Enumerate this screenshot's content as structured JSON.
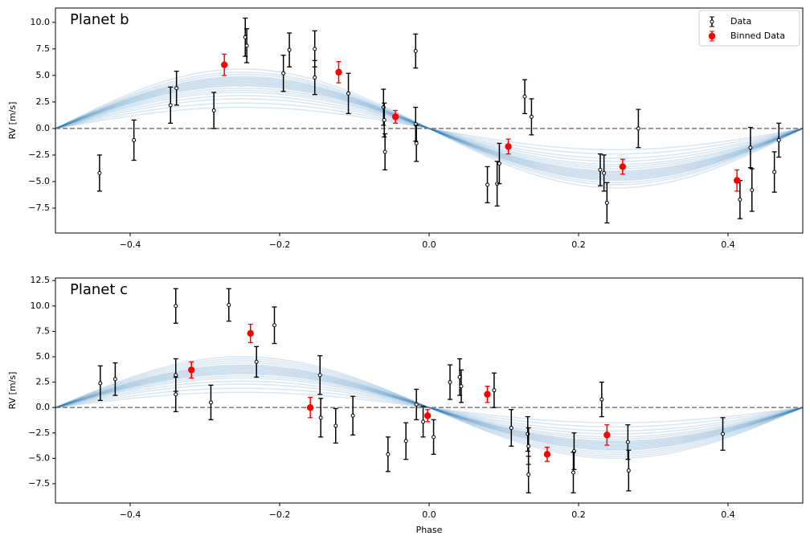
{
  "chart_data": [
    {
      "type": "scatter",
      "title": "Planet b",
      "ylabel": "RV [m/s]",
      "xlim": [
        -0.5,
        0.5
      ],
      "ylim": [
        -9.85,
        11.35
      ],
      "xticks": [
        {
          "value": -0.4,
          "label": "−0.4"
        },
        {
          "value": -0.2,
          "label": "−0.2"
        },
        {
          "value": 0,
          "label": "0.0"
        },
        {
          "value": 0.2,
          "label": "0.2"
        },
        {
          "value": 0.4,
          "label": "0.4"
        }
      ],
      "yticks": [
        {
          "value": -7.5,
          "label": "−7.5"
        },
        {
          "value": -5,
          "label": "−5.0"
        },
        {
          "value": -2.5,
          "label": "−2.5"
        },
        {
          "value": 0,
          "label": "0.0"
        },
        {
          "value": 2.5,
          "label": "2.5"
        },
        {
          "value": 5,
          "label": "5.0"
        },
        {
          "value": 7.5,
          "label": "7.5"
        },
        {
          "value": 10,
          "label": "10.0"
        }
      ],
      "grid": false,
      "legend": "upper right",
      "hline": 0,
      "models": {
        "color": "#1f77b4",
        "amplitudes": [
          2.0,
          2.4,
          2.8,
          3.1,
          3.4,
          3.6,
          3.8,
          4.0,
          4.1,
          4.2,
          4.3,
          4.4,
          4.5,
          4.6,
          4.7,
          4.8,
          4.9,
          5.1,
          5.3,
          5.6
        ]
      },
      "series": [
        {
          "name": "Data",
          "color": "#000000",
          "x": [
            -0.441,
            -0.395,
            -0.346,
            -0.338,
            -0.288,
            -0.246,
            -0.244,
            -0.195,
            -0.187,
            -0.153,
            -0.153,
            -0.108,
            -0.061,
            -0.06,
            -0.059,
            -0.018,
            -0.018,
            -0.017,
            0.078,
            0.091,
            0.094,
            0.128,
            0.137,
            0.229,
            0.234,
            0.238,
            0.28,
            0.43,
            0.432,
            0.416,
            0.462,
            0.468
          ],
          "values": [
            -4.2,
            -1.1,
            2.2,
            3.8,
            1.7,
            8.6,
            7.8,
            5.2,
            7.4,
            7.5,
            4.8,
            3.3,
            2.0,
            0.8,
            -2.2,
            7.3,
            0.4,
            -1.4,
            -5.3,
            -5.2,
            -3.3,
            3.0,
            1.1,
            -3.9,
            -4.2,
            -7.0,
            0.0,
            -1.8,
            -5.8,
            -6.7,
            -4.1,
            -1.1
          ],
          "errors": [
            1.7,
            1.9,
            1.7,
            1.6,
            1.7,
            1.8,
            1.6,
            1.7,
            1.6,
            1.7,
            1.6,
            1.9,
            1.7,
            1.6,
            1.7,
            1.6,
            1.6,
            1.7,
            1.7,
            2.1,
            1.9,
            1.6,
            1.7,
            1.5,
            1.7,
            1.9,
            1.8,
            1.9,
            2.0,
            1.8,
            1.9,
            1.6
          ]
        },
        {
          "name": "Binned Data",
          "color": "#ff0000",
          "x": [
            -0.274,
            -0.121,
            -0.045,
            0.106,
            0.259,
            0.412
          ],
          "values": [
            6.0,
            5.3,
            1.1,
            -1.7,
            -3.6,
            -4.9
          ],
          "errors": [
            1.0,
            1.0,
            0.6,
            0.7,
            0.7,
            1.0
          ]
        }
      ]
    },
    {
      "type": "scatter",
      "title": "Planet c",
      "ylabel": "RV [m/s]",
      "xlabel": "Phase",
      "xlim": [
        -0.5,
        0.5
      ],
      "ylim": [
        -9.4,
        12.75
      ],
      "xticks": [
        {
          "value": -0.4,
          "label": "−0.4"
        },
        {
          "value": -0.2,
          "label": "−0.2"
        },
        {
          "value": 0,
          "label": "0.0"
        },
        {
          "value": 0.2,
          "label": "0.2"
        },
        {
          "value": 0.4,
          "label": "0.4"
        }
      ],
      "yticks": [
        {
          "value": -7.5,
          "label": "−7.5"
        },
        {
          "value": -5,
          "label": "−5.0"
        },
        {
          "value": -2.5,
          "label": "−2.5"
        },
        {
          "value": 0,
          "label": "0.0"
        },
        {
          "value": 2.5,
          "label": "2.5"
        },
        {
          "value": 5,
          "label": "5.0"
        },
        {
          "value": 7.5,
          "label": "7.5"
        },
        {
          "value": 10,
          "label": "10.0"
        },
        {
          "value": 12.5,
          "label": "12.5"
        }
      ],
      "grid": false,
      "hline": 0,
      "models": {
        "color": "#1f77b4",
        "amplitudes": [
          1.5,
          1.9,
          2.3,
          2.6,
          2.9,
          3.1,
          3.3,
          3.4,
          3.5,
          3.6,
          3.7,
          3.8,
          3.9,
          4.0,
          4.1,
          4.2,
          4.4,
          4.6,
          4.8,
          5.0
        ]
      },
      "series": [
        {
          "color": "#000000",
          "x": [
            -0.44,
            -0.42,
            -0.339,
            -0.339,
            -0.339,
            -0.292,
            -0.268,
            -0.231,
            -0.207,
            -0.146,
            -0.145,
            -0.125,
            -0.102,
            -0.055,
            -0.031,
            -0.017,
            -0.008,
            0.006,
            0.028,
            0.041,
            0.043,
            0.087,
            0.11,
            0.132,
            0.133,
            0.133,
            0.194,
            0.193,
            0.231,
            0.266,
            0.267,
            0.393
          ],
          "values": [
            2.4,
            2.8,
            3.2,
            10.0,
            1.3,
            0.5,
            10.1,
            4.5,
            8.1,
            3.2,
            -1.0,
            -1.8,
            -0.8,
            -4.6,
            -3.3,
            0.3,
            -1.4,
            -2.9,
            2.5,
            3.0,
            2.1,
            1.7,
            -2.0,
            -2.6,
            -3.8,
            -6.6,
            -4.3,
            -6.4,
            0.8,
            -3.4,
            -6.2,
            -2.6
          ],
          "errors": [
            1.7,
            1.6,
            1.6,
            1.7,
            1.7,
            1.7,
            1.6,
            1.5,
            1.8,
            1.9,
            1.9,
            1.7,
            1.9,
            1.7,
            1.8,
            1.5,
            1.5,
            1.7,
            1.7,
            1.8,
            1.6,
            1.7,
            1.8,
            1.7,
            1.8,
            1.8,
            1.8,
            2.0,
            1.7,
            1.7,
            2.0,
            1.6
          ]
        },
        {
          "color": "#ff0000",
          "x": [
            -0.318,
            -0.239,
            -0.159,
            -0.002,
            0.078,
            0.158,
            0.238
          ],
          "values": [
            3.7,
            7.3,
            0.0,
            -0.8,
            1.3,
            -4.6,
            -2.7
          ],
          "errors": [
            0.8,
            0.9,
            1.0,
            0.6,
            0.8,
            0.7,
            1.0
          ]
        }
      ]
    }
  ]
}
